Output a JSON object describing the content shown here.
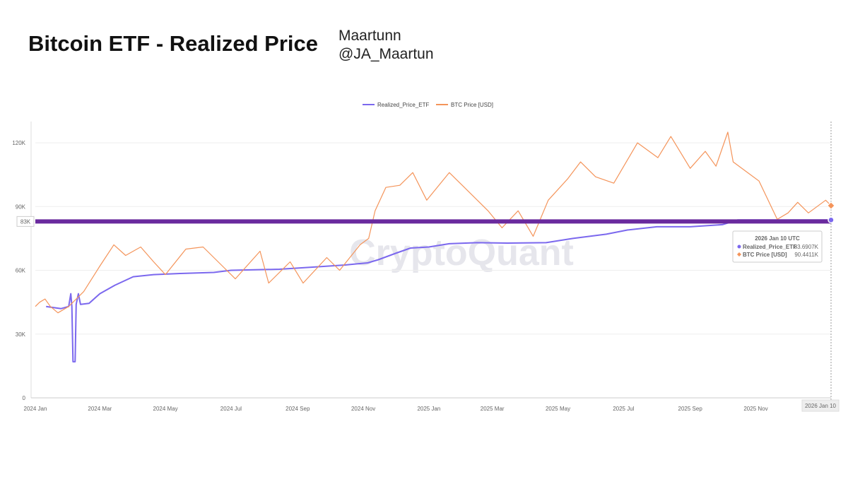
{
  "header": {
    "title": "Bitcoin ETF - Realized Price",
    "author": "Maartunn",
    "handle": "@JA_Maartun"
  },
  "watermark": "CryptoQuant",
  "colors": {
    "realized": "#7b68ee",
    "btc": "#f4945a",
    "hline": "#6a2a9e",
    "grid": "#eeeeee"
  },
  "chart_data": {
    "type": "line",
    "x_labels": [
      "2024 Jan",
      "2024 Mar",
      "2024 May",
      "2024 Jul",
      "2024 Sep",
      "2024 Nov",
      "2025 Jan",
      "2025 Mar",
      "2025 May",
      "2025 Jul",
      "2025 Sep",
      "2025 Nov"
    ],
    "x_end_label": "2026 Jan 10",
    "y_ticks": [
      {
        "value": 0,
        "label": "0"
      },
      {
        "value": 30000,
        "label": "30K"
      },
      {
        "value": 60000,
        "label": "60K"
      },
      {
        "value": 90000,
        "label": "90K"
      },
      {
        "value": 120000,
        "label": "120K"
      }
    ],
    "ylim": [
      0,
      130000
    ],
    "x_range": [
      "2024-01-01",
      "2026-01-10"
    ],
    "grid": "horizontal",
    "legend_position": "top-center",
    "hline": {
      "value": 83000,
      "label": "83K"
    },
    "series": [
      {
        "name": "Realized_Price_ETF",
        "points": [
          [
            "2024-01-11",
            43000
          ],
          [
            "2024-01-25",
            42000
          ],
          [
            "2024-02-01",
            43000
          ],
          [
            "2024-02-03",
            49000
          ],
          [
            "2024-02-04",
            43000
          ],
          [
            "2024-02-05",
            17000
          ],
          [
            "2024-02-07",
            17000
          ],
          [
            "2024-02-08",
            44000
          ],
          [
            "2024-02-10",
            49000
          ],
          [
            "2024-02-12",
            44000
          ],
          [
            "2024-02-20",
            44500
          ],
          [
            "2024-03-01",
            49000
          ],
          [
            "2024-03-15",
            53000
          ],
          [
            "2024-04-01",
            57000
          ],
          [
            "2024-04-20",
            58000
          ],
          [
            "2024-05-15",
            58500
          ],
          [
            "2024-06-15",
            59000
          ],
          [
            "2024-07-01",
            60000
          ],
          [
            "2024-08-15",
            60500
          ],
          [
            "2024-09-15",
            61500
          ],
          [
            "2024-10-15",
            62500
          ],
          [
            "2024-11-05",
            63500
          ],
          [
            "2024-11-15",
            65000
          ],
          [
            "2024-12-01",
            68000
          ],
          [
            "2024-12-15",
            70500
          ],
          [
            "2025-01-01",
            71000
          ],
          [
            "2025-01-20",
            72500
          ],
          [
            "2025-02-15",
            73000
          ],
          [
            "2025-03-15",
            72800
          ],
          [
            "2025-04-20",
            73000
          ],
          [
            "2025-05-15",
            75000
          ],
          [
            "2025-06-15",
            77000
          ],
          [
            "2025-07-05",
            79000
          ],
          [
            "2025-08-01",
            80500
          ],
          [
            "2025-09-01",
            80500
          ],
          [
            "2025-10-01",
            81500
          ],
          [
            "2025-10-15",
            83700
          ],
          [
            "2026-01-10",
            83690.7
          ]
        ]
      },
      {
        "name": "BTC Price [USD]",
        "points": [
          [
            "2024-01-01",
            43000
          ],
          [
            "2024-01-05",
            45000
          ],
          [
            "2024-01-10",
            46500
          ],
          [
            "2024-01-15",
            43000
          ],
          [
            "2024-01-22",
            40000
          ],
          [
            "2024-02-01",
            43000
          ],
          [
            "2024-02-15",
            50000
          ],
          [
            "2024-03-01",
            62000
          ],
          [
            "2024-03-14",
            72000
          ],
          [
            "2024-03-25",
            67000
          ],
          [
            "2024-04-08",
            71000
          ],
          [
            "2024-04-20",
            64000
          ],
          [
            "2024-05-01",
            58000
          ],
          [
            "2024-05-20",
            70000
          ],
          [
            "2024-06-05",
            71000
          ],
          [
            "2024-06-25",
            61000
          ],
          [
            "2024-07-05",
            56000
          ],
          [
            "2024-07-28",
            69000
          ],
          [
            "2024-08-05",
            54000
          ],
          [
            "2024-08-25",
            64000
          ],
          [
            "2024-09-06",
            54000
          ],
          [
            "2024-09-28",
            66000
          ],
          [
            "2024-10-10",
            60000
          ],
          [
            "2024-10-29",
            72000
          ],
          [
            "2024-11-06",
            75000
          ],
          [
            "2024-11-12",
            88000
          ],
          [
            "2024-11-22",
            99000
          ],
          [
            "2024-12-05",
            100000
          ],
          [
            "2024-12-17",
            106000
          ],
          [
            "2024-12-30",
            93000
          ],
          [
            "2025-01-20",
            106000
          ],
          [
            "2025-02-01",
            100000
          ],
          [
            "2025-02-25",
            88000
          ],
          [
            "2025-03-10",
            80000
          ],
          [
            "2025-03-25",
            88000
          ],
          [
            "2025-04-08",
            76000
          ],
          [
            "2025-04-22",
            93000
          ],
          [
            "2025-05-10",
            103000
          ],
          [
            "2025-05-22",
            111000
          ],
          [
            "2025-06-05",
            104000
          ],
          [
            "2025-06-22",
            101000
          ],
          [
            "2025-07-14",
            120000
          ],
          [
            "2025-08-02",
            113000
          ],
          [
            "2025-08-14",
            123000
          ],
          [
            "2025-09-01",
            108000
          ],
          [
            "2025-09-15",
            116000
          ],
          [
            "2025-09-25",
            109000
          ],
          [
            "2025-10-06",
            125000
          ],
          [
            "2025-10-11",
            111000
          ],
          [
            "2025-11-04",
            102000
          ],
          [
            "2025-11-21",
            84000
          ],
          [
            "2025-12-01",
            87000
          ],
          [
            "2025-12-10",
            92000
          ],
          [
            "2025-12-20",
            87000
          ],
          [
            "2026-01-05",
            93000
          ],
          [
            "2026-01-10",
            90441.1
          ]
        ]
      }
    ],
    "tooltip": {
      "date": "2026 Jan 10 UTC",
      "rows": [
        {
          "name": "Realized_Price_ETF",
          "value": "83.6907K",
          "marker": "circle"
        },
        {
          "name": "BTC Price [USD]",
          "value": "90.4411K",
          "marker": "diamond"
        }
      ]
    }
  }
}
